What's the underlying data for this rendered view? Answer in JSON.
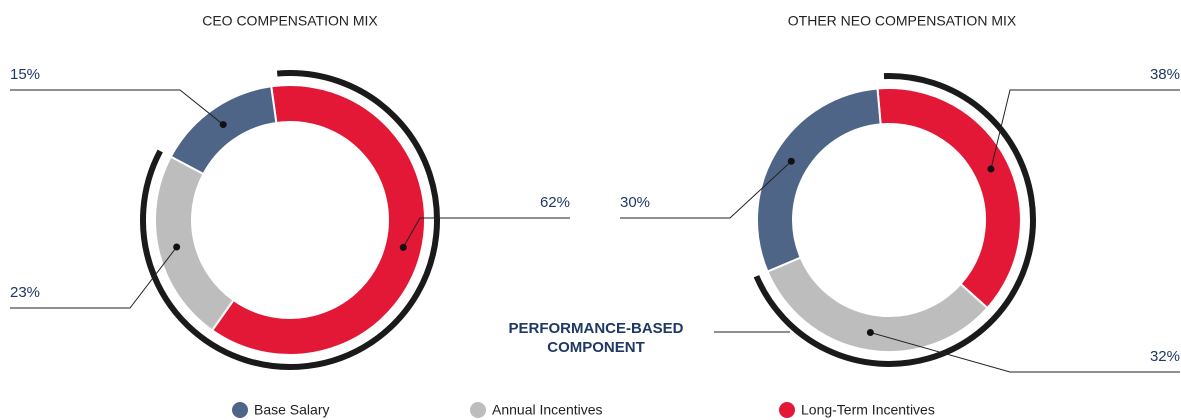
{
  "chart_data": [
    {
      "type": "donut",
      "title": "CEO COMPENSATION MIX",
      "categories": [
        "Base Salary",
        "Annual Incentives",
        "Long-Term Incentives"
      ],
      "values": [
        15,
        23,
        62
      ],
      "value_labels": [
        "15%",
        "23%",
        "62%"
      ],
      "colors": [
        "#4e6587",
        "#bdbdbd",
        "#e31837"
      ]
    },
    {
      "type": "donut",
      "title": "OTHER NEO COMPENSATION MIX",
      "categories": [
        "Base Salary",
        "Annual Incentives",
        "Long-Term Incentives"
      ],
      "values": [
        30,
        32,
        38
      ],
      "value_labels": [
        "30%",
        "32%",
        "38%"
      ],
      "colors": [
        "#4e6587",
        "#bdbdbd",
        "#e31837"
      ]
    }
  ],
  "annotation": [
    "PERFORMANCE-BASED",
    "COMPONENT"
  ]
}
